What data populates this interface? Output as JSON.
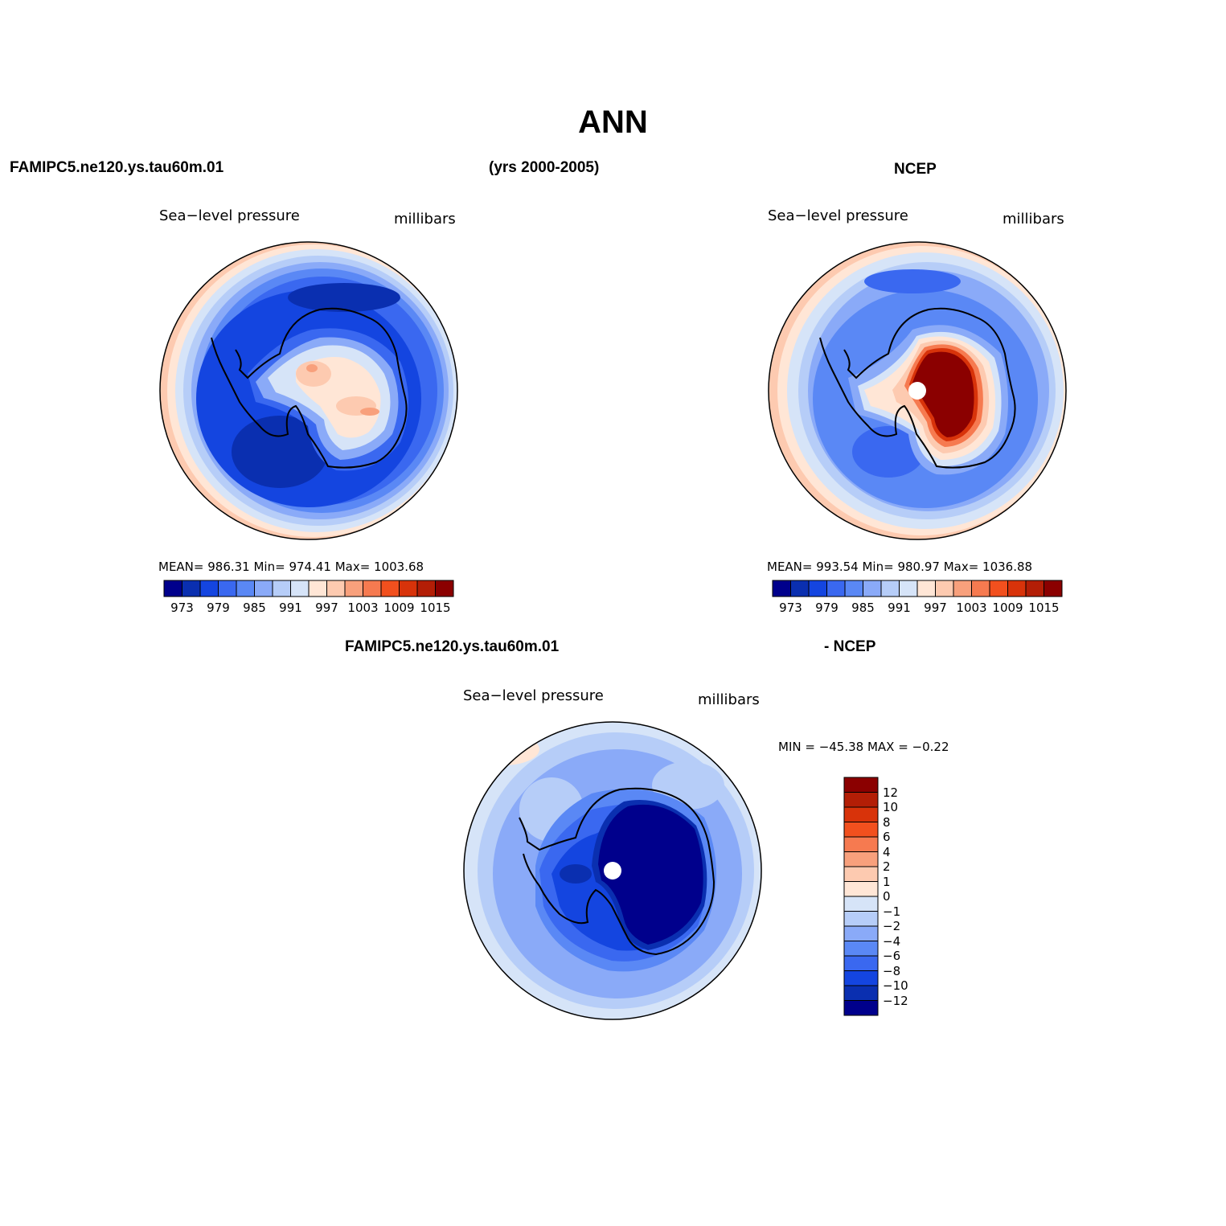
{
  "figure": {
    "title": "ANN",
    "left_label": "FAMIPC5.ne120.ys.tau60m.01",
    "center_label": "(yrs 2000-2005)",
    "right_label": "NCEP",
    "diff_left_label": "FAMIPC5.ne120.ys.tau60m.01",
    "diff_right_label": "- NCEP"
  },
  "panels": [
    {
      "id": "model",
      "variable": "Sea−level pressure",
      "units": "millibars",
      "stats": "MEAN=  986.31   Min=  974.41   Max=  1003.68",
      "mean": 986.31,
      "min": 974.41,
      "max": 1003.68
    },
    {
      "id": "ncep",
      "variable": "Sea−level pressure",
      "units": "millibars",
      "stats": "MEAN=  993.54   Min=  980.97   Max=  1036.88",
      "mean": 993.54,
      "min": 980.97,
      "max": 1036.88
    },
    {
      "id": "diff",
      "variable": "Sea−level pressure",
      "units": "millibars",
      "stats": "MIN  =  −45.38  MAX  =    −0.22",
      "min": -45.38,
      "max": -0.22
    }
  ],
  "colorbar_abs": {
    "tick_labels": [
      "973",
      "979",
      "985",
      "991",
      "997",
      "1003",
      "1009",
      "1015"
    ],
    "levels": [
      970,
      973,
      976,
      979,
      982,
      985,
      988,
      991,
      994,
      997,
      1000,
      1003,
      1006,
      1009,
      1012,
      1015,
      1018
    ],
    "colors": [
      "#00008c",
      "#0a2fb0",
      "#1445e0",
      "#3a68f0",
      "#5a88f5",
      "#8aaaf8",
      "#b6cdf8",
      "#d6e4f8",
      "#ffe6d6",
      "#fdcab0",
      "#f8a07c",
      "#f67a50",
      "#f2501e",
      "#d8330a",
      "#b31e06",
      "#8b0000"
    ]
  },
  "colorbar_diff": {
    "tick_labels": [
      "12",
      "10",
      "8",
      "6",
      "4",
      "2",
      "1",
      "0",
      "−1",
      "−2",
      "−4",
      "−6",
      "−8",
      "−10",
      "−12"
    ],
    "levels": [
      12,
      10,
      8,
      6,
      4,
      2,
      1,
      0,
      -1,
      -2,
      -4,
      -6,
      -8,
      -10,
      -12
    ],
    "colors": [
      "#8b0000",
      "#b31e06",
      "#d8330a",
      "#f2501e",
      "#f67a50",
      "#f8a07c",
      "#fdcab0",
      "#ffe6d6",
      "#d6e4f8",
      "#b6cdf8",
      "#8aaaf8",
      "#5a88f5",
      "#3a68f0",
      "#1445e0",
      "#0a2fb0",
      "#00008c"
    ]
  },
  "chart_data": {
    "type": "heatmap",
    "title": "ANN",
    "projection": "south polar stereographic",
    "variable": "Sea-level pressure",
    "units": "millibars",
    "panels": [
      {
        "name": "FAMIPC5.ne120.ys.tau60m.01",
        "mean": 986.31,
        "min": 974.41,
        "max": 1003.68
      },
      {
        "name": "NCEP",
        "mean": 993.54,
        "min": 980.97,
        "max": 1036.88
      },
      {
        "name": "FAMIPC5.ne120.ys.tau60m.01 - NCEP",
        "min": -45.38,
        "max": -0.22
      }
    ]
  }
}
